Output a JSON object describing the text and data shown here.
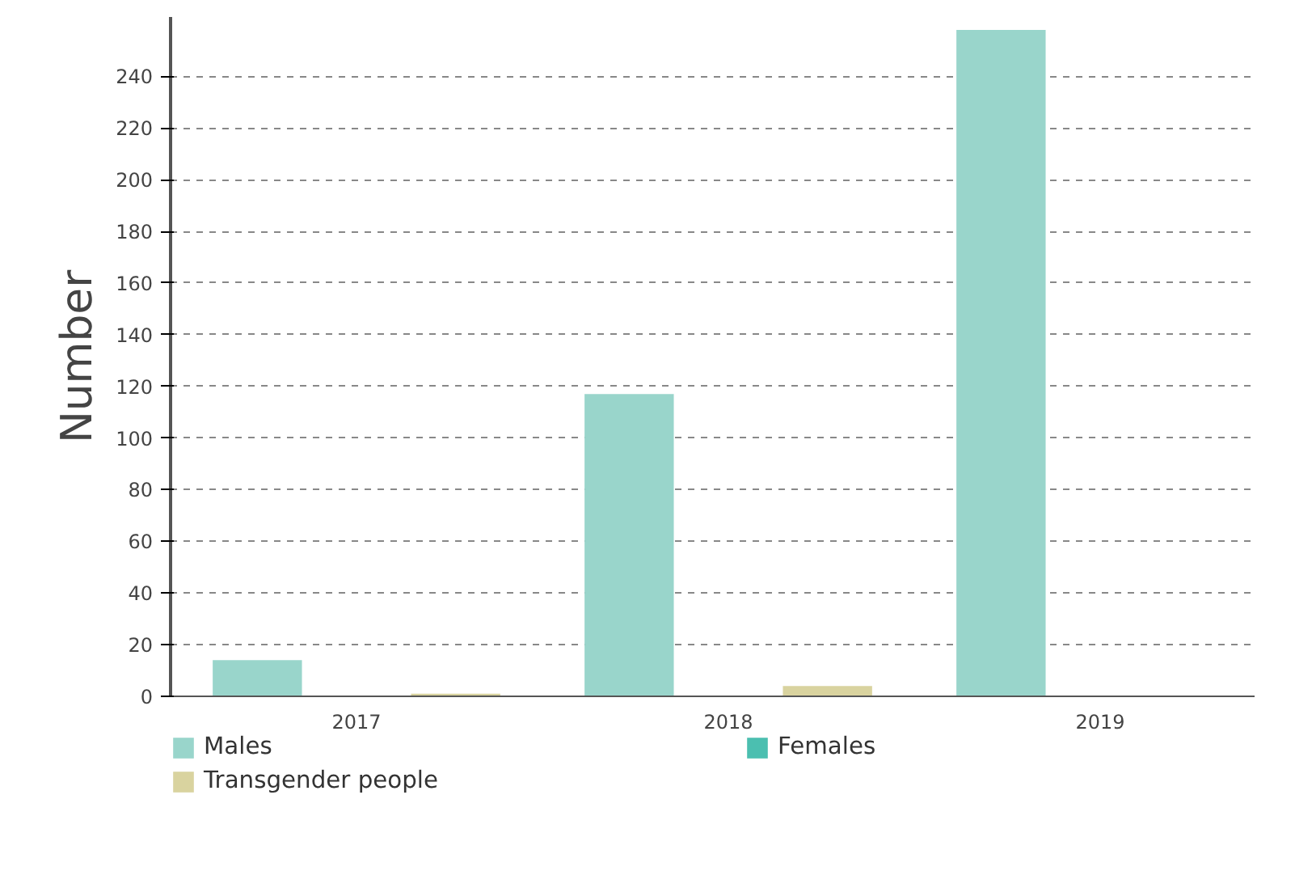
{
  "chart_data": {
    "type": "bar",
    "ylabel": "Number",
    "categories": [
      "2017",
      "2018",
      "2019"
    ],
    "series": [
      {
        "name": "Males",
        "color": "#99d5cb",
        "values": [
          14,
          117,
          258
        ]
      },
      {
        "name": "Females",
        "color": "#4bbfb0",
        "values": [
          0,
          0,
          0
        ]
      },
      {
        "name": "Transgender people",
        "color": "#d9d39f",
        "values": [
          1,
          4,
          0
        ]
      }
    ],
    "ylim": [
      0,
      263
    ],
    "yticks": [
      0,
      20,
      40,
      60,
      80,
      100,
      120,
      140,
      160,
      180,
      200,
      220,
      240
    ],
    "grid": "y",
    "legend": "bottom"
  }
}
